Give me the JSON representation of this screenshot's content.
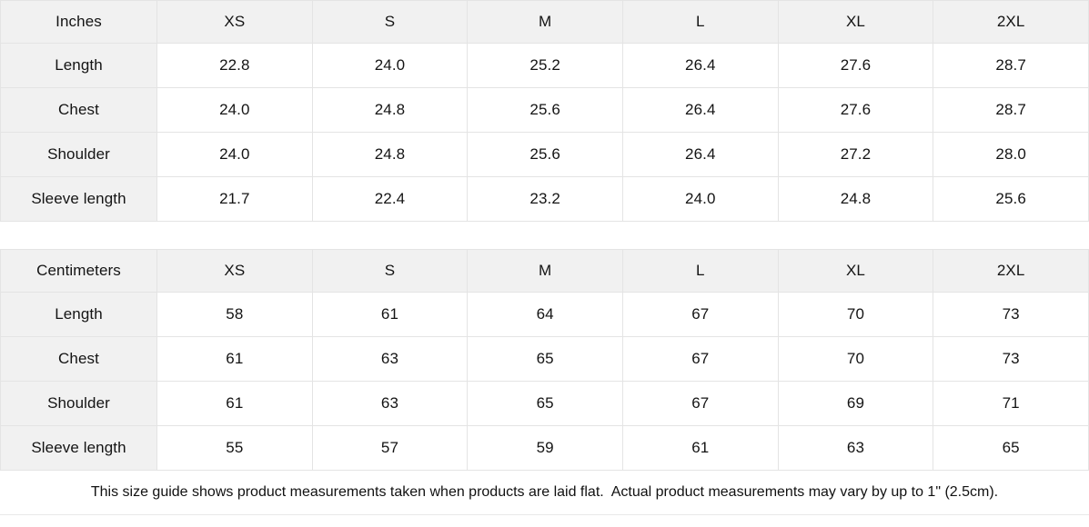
{
  "page": {
    "note": "This size guide shows product measurements taken when products are laid flat.  Actual product measurements may vary by up to 1\" (2.5cm)."
  },
  "colors": {
    "header_background": "#f1f1f1",
    "label_column_background": "#f1f1f1",
    "border": "#e4e4e4",
    "text": "#141414",
    "cell_background": "#ffffff"
  },
  "chart_data": [
    {
      "type": "table",
      "title": "Inches",
      "unit": "Inches",
      "columns": [
        "Inches",
        "XS",
        "S",
        "M",
        "L",
        "XL",
        "2XL"
      ],
      "rows": [
        {
          "label": "Length",
          "values": [
            "22.8",
            "24.0",
            "25.2",
            "26.4",
            "27.6",
            "28.7"
          ]
        },
        {
          "label": "Chest",
          "values": [
            "24.0",
            "24.8",
            "25.6",
            "26.4",
            "27.6",
            "28.7"
          ]
        },
        {
          "label": "Shoulder",
          "values": [
            "24.0",
            "24.8",
            "25.6",
            "26.4",
            "27.2",
            "28.0"
          ]
        },
        {
          "label": "Sleeve length",
          "values": [
            "21.7",
            "22.4",
            "23.2",
            "24.0",
            "24.8",
            "25.6"
          ]
        }
      ]
    },
    {
      "type": "table",
      "title": "Centimeters",
      "unit": "Centimeters",
      "columns": [
        "Centimeters",
        "XS",
        "S",
        "M",
        "L",
        "XL",
        "2XL"
      ],
      "rows": [
        {
          "label": "Length",
          "values": [
            "58",
            "61",
            "64",
            "67",
            "70",
            "73"
          ]
        },
        {
          "label": "Chest",
          "values": [
            "61",
            "63",
            "65",
            "67",
            "70",
            "73"
          ]
        },
        {
          "label": "Shoulder",
          "values": [
            "61",
            "63",
            "65",
            "67",
            "69",
            "71"
          ]
        },
        {
          "label": "Sleeve length",
          "values": [
            "55",
            "57",
            "59",
            "61",
            "63",
            "65"
          ]
        }
      ]
    }
  ]
}
